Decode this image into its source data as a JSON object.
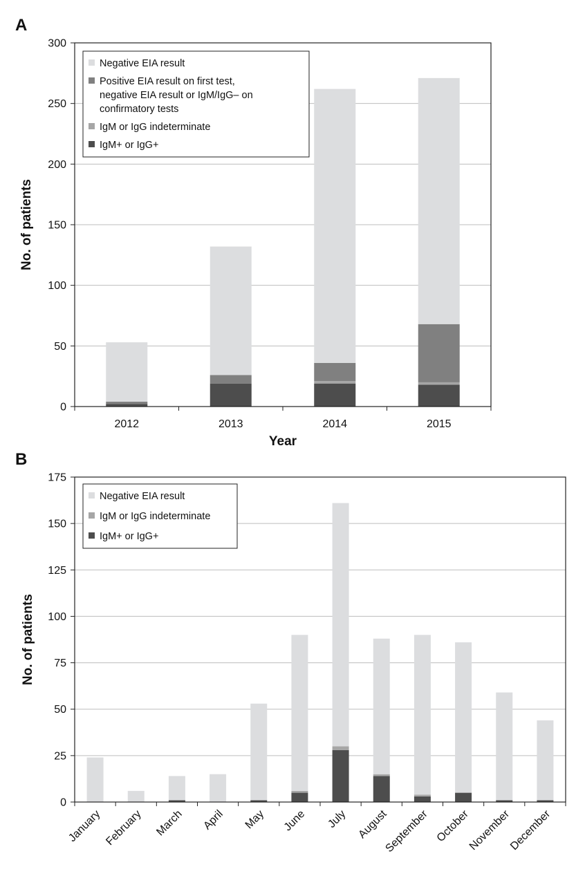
{
  "chart_data": [
    {
      "panel_label": "A",
      "type": "bar",
      "stacked": true,
      "xlabel": "Year",
      "ylabel": "No. of patients",
      "ylim": [
        0,
        300
      ],
      "yticks": [
        0,
        50,
        100,
        150,
        200,
        250,
        300
      ],
      "grid": true,
      "legend_placement": "top-left",
      "categories": [
        "2012",
        "2013",
        "2014",
        "2015"
      ],
      "series": [
        {
          "name": "IgM+ or IgG+",
          "color": "#4d4d4d",
          "values": [
            2,
            19,
            19,
            18
          ]
        },
        {
          "name": "IgM or IgG indeterminate",
          "color": "#a6a6a6",
          "values": [
            0,
            0,
            2,
            2
          ]
        },
        {
          "name": "Positive EIA result on first test, negative EIA result or IgM/IgG– on confirmatory tests",
          "color": "#808080",
          "values": [
            2,
            7,
            15,
            48
          ]
        },
        {
          "name": "Negative EIA result",
          "color": "#dcdddf",
          "values": [
            49,
            106,
            226,
            203
          ]
        }
      ],
      "legend_order": [
        "Negative EIA result",
        "Positive EIA result on first test, negative EIA result or IgM/IgG– on confirmatory tests",
        "IgM or IgG indeterminate",
        "IgM+ or IgG+"
      ]
    },
    {
      "panel_label": "B",
      "type": "bar",
      "stacked": true,
      "xlabel": "",
      "ylabel": "No. of patients",
      "ylim": [
        0,
        175
      ],
      "yticks": [
        0,
        25,
        50,
        75,
        100,
        125,
        150,
        175
      ],
      "grid": true,
      "legend_placement": "top-left",
      "categories": [
        "January",
        "February",
        "March",
        "April",
        "May",
        "June",
        "July",
        "August",
        "September",
        "October",
        "November",
        "December"
      ],
      "series": [
        {
          "name": "IgM+ or IgG+",
          "color": "#4d4d4d",
          "values": [
            0,
            0,
            1,
            0,
            1,
            5,
            28,
            14,
            3,
            5,
            1,
            1
          ]
        },
        {
          "name": "IgM or IgG indeterminate",
          "color": "#a6a6a6",
          "values": [
            0,
            0,
            0,
            0,
            0,
            1,
            2,
            1,
            1,
            0,
            0,
            0
          ]
        },
        {
          "name": "Negative EIA result",
          "color": "#dcdddf",
          "values": [
            24,
            6,
            13,
            15,
            52,
            84,
            131,
            73,
            86,
            81,
            58,
            43
          ]
        }
      ],
      "legend_order": [
        "Negative EIA result",
        "IgM or IgG indeterminate",
        "IgM+ or IgG+"
      ]
    }
  ]
}
